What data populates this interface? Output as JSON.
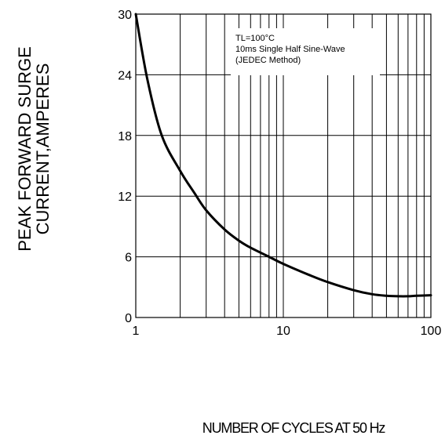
{
  "chart_data": {
    "type": "line",
    "title": "",
    "xlabel": "NUMBER OF CYCLES AT 50 Hz",
    "ylabel_lines": [
      "PEAK FORWARD SURGE",
      "CURRENT,AMPERES"
    ],
    "x_scale": "log",
    "xlim": [
      1,
      100
    ],
    "ylim": [
      0,
      30
    ],
    "x_ticks": [
      1,
      10,
      100
    ],
    "y_ticks": [
      0,
      6,
      12,
      18,
      24,
      30
    ],
    "grid": true,
    "annotation_lines": [
      "TL=100°C",
      "10ms Single Half Sine-Wave",
      "(JEDEC Method)"
    ],
    "series": [
      {
        "x": [
          1,
          1.2,
          1.5,
          2,
          2.5,
          3,
          4,
          5,
          6,
          8,
          10,
          15,
          20,
          30,
          40,
          50,
          60,
          70,
          80,
          100
        ],
        "y": [
          30,
          23.5,
          18,
          14.5,
          12.3,
          10.6,
          8.7,
          7.6,
          6.9,
          6.0,
          5.3,
          4.2,
          3.5,
          2.7,
          2.3,
          2.15,
          2.1,
          2.1,
          2.15,
          2.2
        ],
        "color": "#000000"
      }
    ]
  }
}
